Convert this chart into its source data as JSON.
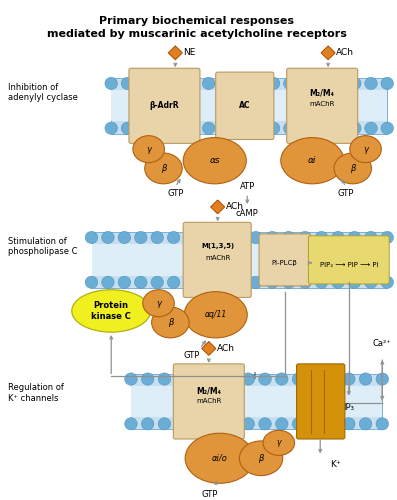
{
  "title_line1": "Primary biochemical responses",
  "title_line2": "mediated by muscarinic acetylcholine receptors",
  "bg_color": "#ffffff",
  "membrane_color": "#c8dff0",
  "membrane_dot_color": "#6aadd5",
  "membrane_wave_color": "#7ab8d8",
  "receptor_fill": "#e8d4a8",
  "receptor_edge": "#b89a60",
  "gprotein_fill": "#e0953a",
  "gprotein_edge": "#b06010",
  "enzyme_fill": "#e8d4a8",
  "enzyme_edge": "#b89a60",
  "kinaseC_fill": "#f0f020",
  "kinaseC_edge": "#b0b010",
  "pip_fill": "#e8d870",
  "pip_edge": "#b0a030",
  "arrow_color": "#909090",
  "text_color": "#000000",
  "orange_color": "#e08020",
  "kchannel_fill": "#d4920a",
  "kchannel_edge": "#a06808",
  "interior_fill": "#deeef8",
  "label1": "Inhibition of\nadenylyl cyclase",
  "label2": "Stimulation of\nphospholipase C",
  "label3": "Regulation of\nK⁺ channels"
}
